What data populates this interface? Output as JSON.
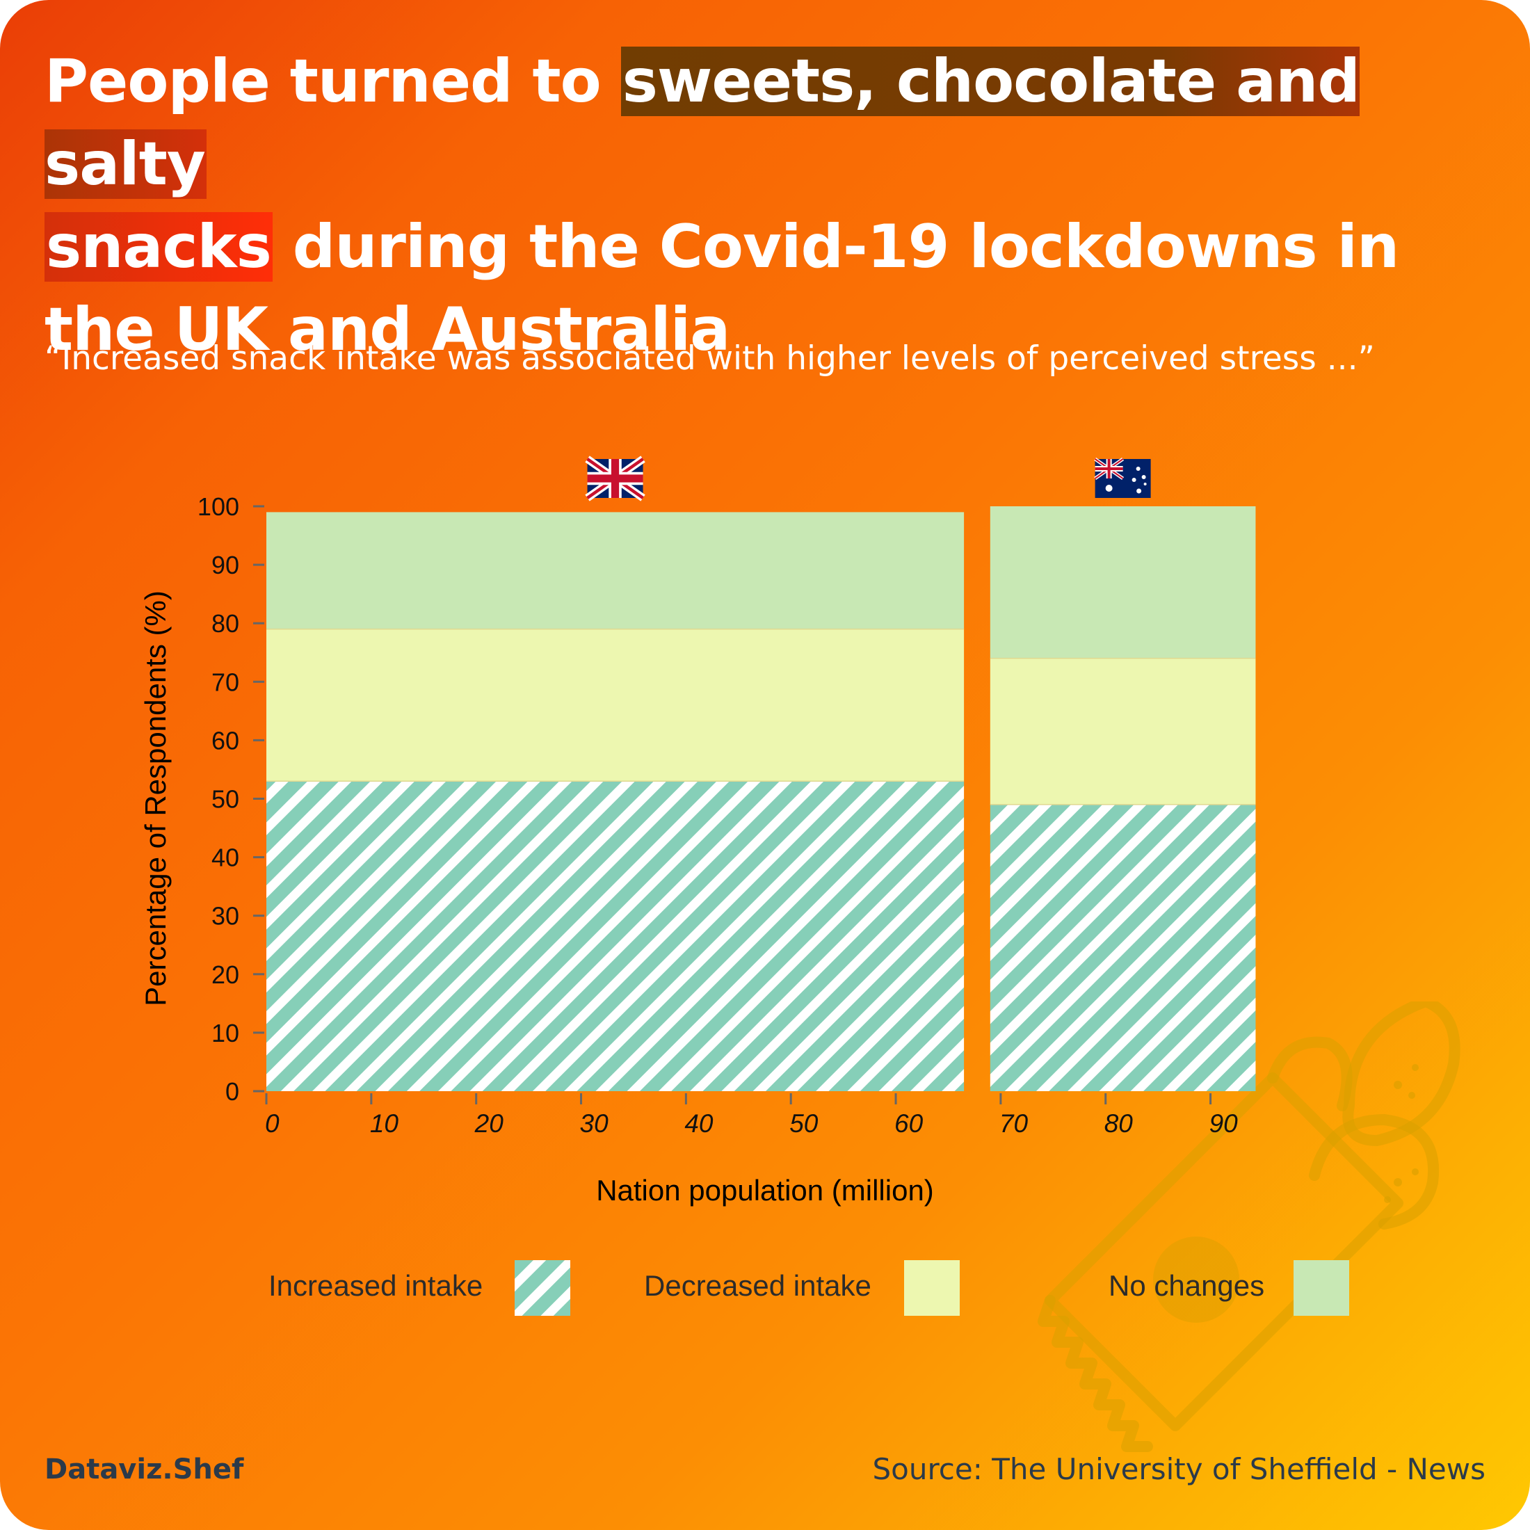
{
  "title": {
    "part1": "People turned to ",
    "highlight1": "sweets, chocolate and salty",
    "highlight2": "snacks",
    "part2": " during the Covid-19 lockdowns in the UK and Australia"
  },
  "subtitle": "“Increased snack intake was associated with higher levels of perceived stress ...”",
  "colors": {
    "increased": "#86cfb8",
    "decreased": "#edf7b0",
    "no_change": "#c8e8b4"
  },
  "chart_data": {
    "type": "bar",
    "variant": "mekko-stacked-percent",
    "xlabel": "Nation population (million)",
    "ylabel": "Percentage of Respondents (%)",
    "xlim": [
      0,
      95
    ],
    "ylim": [
      0,
      100
    ],
    "xticks": [
      0,
      10,
      20,
      30,
      40,
      50,
      60,
      70,
      80,
      90
    ],
    "yticks": [
      0,
      10,
      20,
      30,
      40,
      50,
      60,
      70,
      80,
      90,
      100
    ],
    "categories": [
      {
        "icon": "uk-flag-icon",
        "x_start": 0,
        "x_end": 66.5
      },
      {
        "icon": "australia-flag-icon",
        "x_start": 69,
        "x_end": 94.3
      }
    ],
    "series": [
      {
        "name": "Increased intake",
        "values": [
          53,
          49
        ],
        "pattern": "hatched"
      },
      {
        "name": "Decreased intake",
        "values": [
          26,
          25
        ]
      },
      {
        "name": "No changes",
        "values": [
          20,
          26
        ]
      }
    ]
  },
  "legend": [
    {
      "label": "Increased intake",
      "swatch": "hatched"
    },
    {
      "label": "Decreased intake",
      "swatch": "decreased"
    },
    {
      "label": "No changes",
      "swatch": "no_change"
    }
  ],
  "footer": {
    "brand": "Dataviz.Shef",
    "source": "Source: The University of Sheffield - News"
  }
}
